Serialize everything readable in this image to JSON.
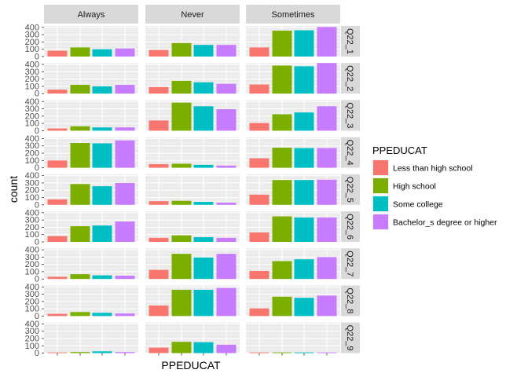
{
  "chart_data": {
    "type": "bar",
    "facet_columns": [
      "Always",
      "Never",
      "Sometimes"
    ],
    "facet_rows": [
      "Q22_1",
      "Q22_2",
      "Q22_3",
      "Q22_4",
      "Q22_5",
      "Q22_6",
      "Q22_7",
      "Q22_8",
      "Q22_9"
    ],
    "categories": [
      "Less than high school",
      "High school",
      "Some college",
      "Bachelor_s degree or higher"
    ],
    "colors": [
      "#F8766D",
      "#7CAE00",
      "#00BFC4",
      "#C77CFF"
    ],
    "xlabel": "PPEDUCAT",
    "ylabel": "count",
    "legend_title": "PPEDUCAT",
    "legend_position": "right",
    "ylim": [
      0,
      420
    ],
    "yticks": [
      0,
      100,
      200,
      300,
      400
    ],
    "ytick_labels": [
      "0",
      "100",
      "200",
      "300",
      "400"
    ],
    "grid": true,
    "values": {
      "Q22_1": {
        "Always": [
          80,
          125,
          100,
          110
        ],
        "Never": [
          90,
          185,
          160,
          160
        ],
        "Sometimes": [
          125,
          355,
          360,
          405
        ]
      },
      "Q22_2": {
        "Always": [
          55,
          120,
          100,
          120
        ],
        "Never": [
          90,
          175,
          155,
          135
        ],
        "Sometimes": [
          125,
          385,
          375,
          420
        ]
      },
      "Q22_3": {
        "Always": [
          30,
          60,
          45,
          45
        ],
        "Never": [
          140,
          385,
          335,
          295
        ],
        "Sometimes": [
          105,
          225,
          250,
          335
        ]
      },
      "Q22_4": {
        "Always": [
          100,
          340,
          335,
          375
        ],
        "Never": [
          50,
          55,
          40,
          30
        ],
        "Sometimes": [
          130,
          275,
          270,
          270
        ]
      },
      "Q22_5": {
        "Always": [
          75,
          285,
          255,
          300
        ],
        "Never": [
          50,
          55,
          40,
          30
        ],
        "Sometimes": [
          140,
          340,
          340,
          345
        ]
      },
      "Q22_6": {
        "Always": [
          80,
          215,
          225,
          280
        ],
        "Never": [
          55,
          90,
          65,
          55
        ],
        "Sometimes": [
          130,
          350,
          335,
          335
        ]
      },
      "Q22_7": {
        "Always": [
          30,
          65,
          50,
          45
        ],
        "Never": [
          125,
          345,
          295,
          345
        ],
        "Sometimes": [
          110,
          245,
          270,
          300
        ]
      },
      "Q22_8": {
        "Always": [
          30,
          55,
          45,
          35
        ],
        "Never": [
          145,
          360,
          360,
          385
        ],
        "Sometimes": [
          105,
          265,
          250,
          280
        ]
      },
      "Q22_9": {
        "Always": [
          10,
          15,
          25,
          15
        ],
        "Never": [
          75,
          155,
          150,
          115
        ],
        "Sometimes": [
          10,
          10,
          10,
          10
        ]
      }
    }
  }
}
